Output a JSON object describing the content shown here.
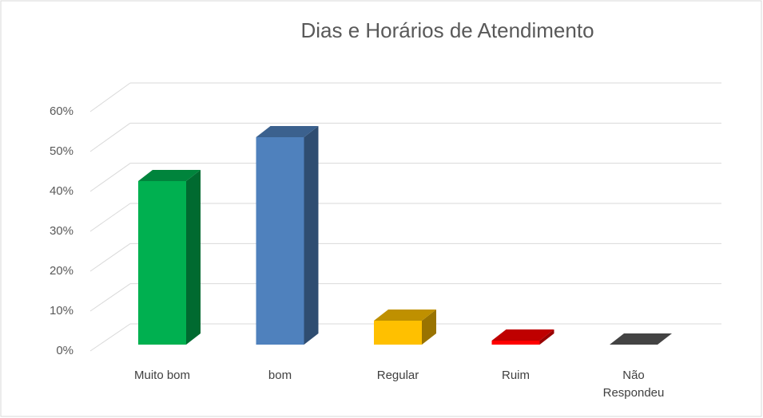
{
  "chart_data": {
    "type": "bar3d",
    "title": "Dias e Horários de Atendimento",
    "categories": [
      "Muito bom",
      "bom",
      "Regular",
      "Ruim",
      "Não Respondeu"
    ],
    "values": [
      41,
      52,
      6,
      1,
      0
    ],
    "colors": [
      "#00b050",
      "#4f81bd",
      "#ffc000",
      "#ff0000",
      "#595959"
    ],
    "ylim": [
      0,
      60
    ],
    "yticks": [
      {
        "value": 0,
        "label": "0%"
      },
      {
        "value": 10,
        "label": "10%"
      },
      {
        "value": 20,
        "label": "20%"
      },
      {
        "value": 30,
        "label": "30%"
      },
      {
        "value": 40,
        "label": "40%"
      },
      {
        "value": 50,
        "label": "50%"
      },
      {
        "value": 60,
        "label": "60%"
      }
    ],
    "grid": true
  }
}
